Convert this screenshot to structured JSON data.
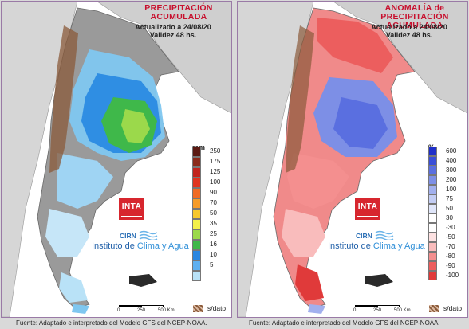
{
  "left_panel": {
    "title_line1": "PRECIPITACIÓN",
    "title_line2": "ACUMULADA",
    "updated": "Actualizado a 24/08/20",
    "validity": "Validez 48 hs.",
    "unit": "mm",
    "legend": [
      {
        "label": "250",
        "color": "#5b1a12"
      },
      {
        "label": "175",
        "color": "#8b2a1a"
      },
      {
        "label": "125",
        "color": "#c2241d"
      },
      {
        "label": "100",
        "color": "#e0341f"
      },
      {
        "label": "90",
        "color": "#f06a23"
      },
      {
        "label": "70",
        "color": "#f59b28"
      },
      {
        "label": "50",
        "color": "#f7c82c"
      },
      {
        "label": "35",
        "color": "#f3f04a"
      },
      {
        "label": "25",
        "color": "#9bd94b"
      },
      {
        "label": "16",
        "color": "#3fb84a"
      },
      {
        "label": "10",
        "color": "#2a86e0"
      },
      {
        "label": "5",
        "color": "#5fb0f0"
      },
      {
        "label": "",
        "color": "#b9e2f7"
      }
    ],
    "footer": "Fuente: Adaptado e interpretado del Modelo GFS del NCEP-NOAA."
  },
  "right_panel": {
    "title_line1": "ANOMALÍA de",
    "title_line2": "PRECIPITACIÓN ACUMULADA",
    "updated": "Actualizado a 24/08/20",
    "validity": "Validez 48 hs.",
    "unit": "%",
    "legend": [
      {
        "label": "600",
        "color": "#1f2fc9"
      },
      {
        "label": "400",
        "color": "#3a4fd8"
      },
      {
        "label": "300",
        "color": "#5a6fe0"
      },
      {
        "label": "200",
        "color": "#7d8fe6"
      },
      {
        "label": "100",
        "color": "#a2b0ee"
      },
      {
        "label": "75",
        "color": "#c3cdf4"
      },
      {
        "label": "50",
        "color": "#e0e6fa"
      },
      {
        "label": "30",
        "color": "#ffffff"
      },
      {
        "label": "-30",
        "color": "#ffffff"
      },
      {
        "label": "-50",
        "color": "#fde2e2"
      },
      {
        "label": "-70",
        "color": "#f9bcbc"
      },
      {
        "label": "-80",
        "color": "#f48f8f"
      },
      {
        "label": "-90",
        "color": "#ec5e5e"
      },
      {
        "label": "-100",
        "color": "#e03a3a"
      }
    ],
    "footer": "Fuente: Adaptado e interpretado del Modelo GFS del NCEP-NOAA."
  },
  "common": {
    "logo_text": "INTA",
    "cirn_text": "CIRN",
    "institute_prefix": "Instituto de ",
    "institute_highlight": "Clima y Agua",
    "scale_0": "0",
    "scale_250": "250",
    "scale_500": "500 Km",
    "nodata_label": "s/dato"
  }
}
